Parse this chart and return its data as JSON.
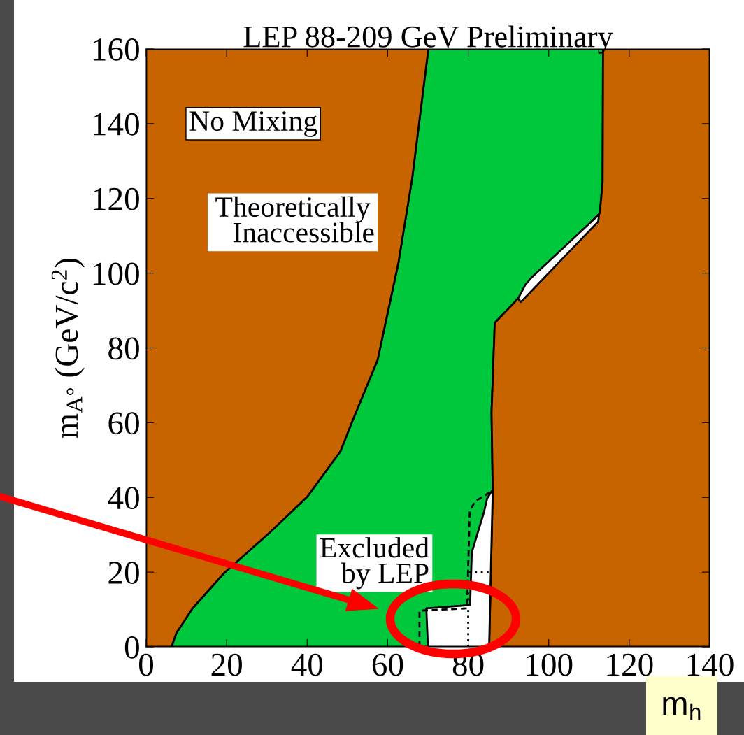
{
  "chart_data": {
    "type": "area",
    "title": "LEP 88-209 GeV Preliminary",
    "xlabel": "m$_{h}$",
    "ylabel": "m$_{A°}$ (GeV/c$^{2}$)",
    "xlim": [
      0,
      140
    ],
    "ylim": [
      0,
      160
    ],
    "xticks": [
      0,
      20,
      40,
      60,
      80,
      100,
      120,
      140
    ],
    "yticks": [
      0,
      20,
      40,
      60,
      80,
      100,
      120,
      140,
      160
    ],
    "grid": false,
    "series": [
      {
        "color": "#00c83c",
        "x": [
          6.3,
          7.5,
          11.5,
          19.3,
          30.6,
          40.1,
          48.3,
          51.4,
          57.5,
          62.7,
          66.1,
          70.1,
          113.5,
          113.4,
          112.7,
          86.6,
          85.8,
          86.1,
          85.2
        ],
        "values": [
          0,
          3.7,
          10.3,
          19.7,
          30.5,
          40.3,
          52.4,
          60.9,
          76.8,
          103,
          125.5,
          160,
          160,
          124.5,
          116.1,
          86.7,
          62.7,
          42.1,
          0
        ]
      },
      {
        "color": "#c86400",
        "x": [
          0,
          6.3,
          7.5,
          11.5,
          19.3,
          30.6,
          40.1,
          48.3,
          51.4,
          57.5,
          62.7,
          66.1,
          70.1,
          0
        ],
        "values": [
          0,
          0,
          3.7,
          10.3,
          19.7,
          30.5,
          40.3,
          52.4,
          60.9,
          76.8,
          103,
          125.5,
          160,
          160
        ]
      },
      {
        "color": "#c86400",
        "x": [
          113.5,
          113.4,
          112.7,
          86.6,
          85.8,
          86.1,
          85.2,
          140,
          140
        ],
        "values": [
          160,
          124.5,
          116.1,
          86.7,
          62.7,
          42.1,
          0,
          0,
          160
        ]
      },
      {
        "color": "#ffffff",
        "x": [
          92.4,
          94.2,
          95.7,
          112.5,
          112.3,
          93.1
        ],
        "values": [
          93.2,
          96.9,
          98.8,
          115.7,
          113.8,
          92.3
        ]
      },
      {
        "color": "#ffffff",
        "x": [
          70,
          69.6,
          80.5,
          80.5,
          80.9,
          83.9,
          84.7,
          85.8,
          86.1,
          85.2
        ],
        "values": [
          0,
          10.3,
          11.2,
          12.2,
          25.3,
          36,
          39.7,
          41.6,
          42.1,
          0
        ]
      },
      {
        "type": "line",
        "color": "#000000",
        "line_style": "dashed",
        "x": [
          67.9,
          67.9,
          79.7,
          80.4,
          81.8,
          85.8
        ],
        "values": [
          0,
          9.7,
          10.3,
          36.5,
          39,
          41.6
        ]
      },
      {
        "type": "line",
        "color": "#000000",
        "line_style": "dotted",
        "x": [
          80,
          80,
          85.5
        ],
        "values": [
          0,
          20,
          20
        ]
      }
    ],
    "annotations": [
      "No Mixing",
      "Theoretically\n   Inaccessible",
      "Excluded\n   by LEP"
    ]
  }
}
